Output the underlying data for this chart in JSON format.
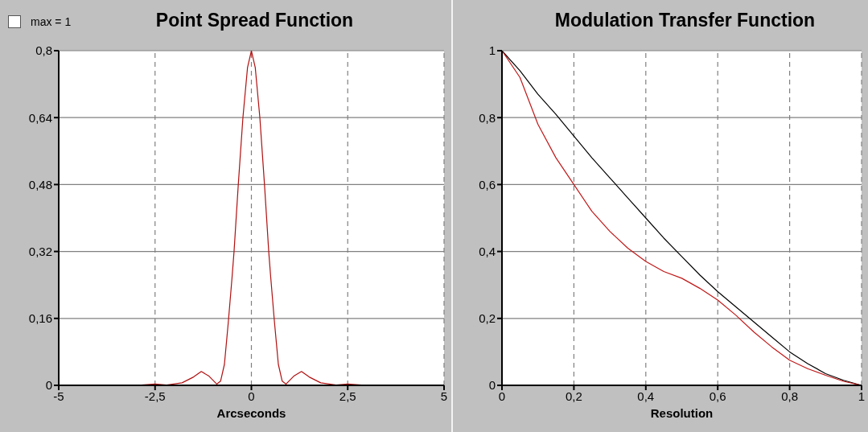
{
  "chart_data": [
    {
      "type": "line",
      "title": "Point Spread Function",
      "xlabel": "Arcseconds",
      "annotations": [
        "max = 1"
      ],
      "x": [
        -5,
        -3,
        -2.5,
        -2.2,
        -1.8,
        -1.5,
        -1.3,
        -1.1,
        -0.9,
        -0.8,
        -0.7,
        -0.6,
        -0.5,
        -0.45,
        -0.34,
        -0.22,
        -0.1,
        0,
        0.1,
        0.22,
        0.34,
        0.45,
        0.5,
        0.6,
        0.7,
        0.8,
        0.9,
        1.1,
        1.3,
        1.5,
        1.8,
        2.2,
        2.5,
        3,
        5
      ],
      "series": [
        {
          "color": "#b01010",
          "values": [
            0,
            0,
            0.003,
            0.001,
            0.006,
            0.02,
            0.033,
            0.022,
            0.003,
            0.01,
            0.05,
            0.15,
            0.26,
            0.32,
            0.48,
            0.64,
            0.76,
            0.8,
            0.76,
            0.64,
            0.48,
            0.32,
            0.26,
            0.15,
            0.05,
            0.01,
            0.003,
            0.022,
            0.033,
            0.02,
            0.006,
            0.001,
            0.003,
            0,
            0
          ]
        }
      ],
      "xlim": [
        -5,
        5
      ],
      "xticks": [
        {
          "value": -5,
          "label": "-5"
        },
        {
          "value": -2.5,
          "label": "-2,5"
        },
        {
          "value": 0,
          "label": "0"
        },
        {
          "value": 2.5,
          "label": "2,5"
        },
        5
      ],
      "ylim": [
        0,
        0.8
      ],
      "yticks": [
        {
          "value": 0,
          "label": "0"
        },
        {
          "value": 0.16,
          "label": "0,16"
        },
        {
          "value": 0.32,
          "label": "0,32"
        },
        {
          "value": 0.48,
          "label": "0,48"
        },
        {
          "value": 0.64,
          "label": "0,64"
        },
        {
          "value": 0.8,
          "label": "0,8"
        }
      ],
      "grid": true
    },
    {
      "type": "line",
      "title": "Modulation Transfer Function",
      "xlabel": "Resolution",
      "x": [
        0,
        0.05,
        0.1,
        0.15,
        0.2,
        0.25,
        0.3,
        0.35,
        0.4,
        0.45,
        0.5,
        0.55,
        0.6,
        0.65,
        0.7,
        0.75,
        0.8,
        0.85,
        0.9,
        0.95,
        1
      ],
      "series": [
        {
          "color": "#000000",
          "values": [
            1,
            0.94,
            0.87,
            0.81,
            0.745,
            0.68,
            0.62,
            0.56,
            0.5,
            0.44,
            0.385,
            0.33,
            0.28,
            0.235,
            0.19,
            0.145,
            0.1,
            0.065,
            0.035,
            0.015,
            0
          ]
        },
        {
          "color": "#c01818",
          "values": [
            1,
            0.92,
            0.78,
            0.68,
            0.6,
            0.52,
            0.46,
            0.41,
            0.37,
            0.34,
            0.32,
            0.29,
            0.255,
            0.21,
            0.16,
            0.115,
            0.075,
            0.05,
            0.03,
            0.012,
            0
          ]
        }
      ],
      "xlim": [
        0,
        1
      ],
      "xticks": [
        {
          "value": 0,
          "label": "0"
        },
        {
          "value": 0.2,
          "label": "0,2"
        },
        {
          "value": 0.4,
          "label": "0,4"
        },
        {
          "value": 0.6,
          "label": "0,6"
        },
        {
          "value": 0.8,
          "label": "0,8"
        },
        1
      ],
      "ylim": [
        0,
        1
      ],
      "yticks": [
        {
          "value": 0,
          "label": "0"
        },
        {
          "value": 0.2,
          "label": "0,2"
        },
        {
          "value": 0.4,
          "label": "0,4"
        },
        {
          "value": 0.6,
          "label": "0,6"
        },
        {
          "value": 0.8,
          "label": "0,8"
        },
        1
      ],
      "grid": true
    }
  ]
}
